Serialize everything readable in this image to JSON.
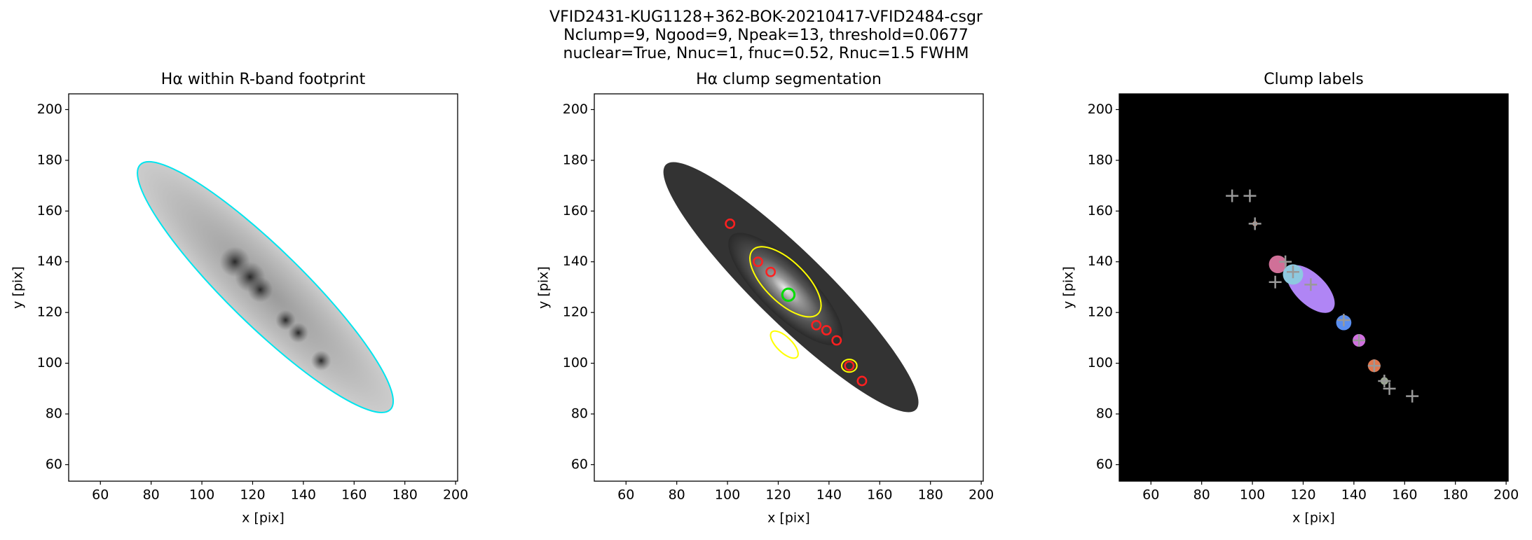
{
  "suptitle": [
    "VFID2431-KUG1128+362-BOK-20210417-VFID2484-csgr",
    "Nclump=9, Ngood=9, Npeak=13, threshold=0.0677",
    "nuclear=True, Nnuc=1, fnuc=0.52, Rnuc=1.5 FWHM"
  ],
  "chart_data": [
    {
      "type": "image",
      "title": "Hα within R-band footprint",
      "xlabel": "x [pix]",
      "ylabel": "y [pix]",
      "xlim": [
        47.5,
        200.8
      ],
      "ylim": [
        53.5,
        206.2
      ],
      "xticks": [
        60,
        80,
        100,
        120,
        140,
        160,
        180,
        200
      ],
      "yticks": [
        60,
        80,
        100,
        120,
        140,
        160,
        180,
        200
      ]
    },
    {
      "type": "image",
      "title": "Hα clump segmentation",
      "xlabel": "x [pix]",
      "ylabel": "y [pix]",
      "xlim": [
        47.5,
        200.8
      ],
      "ylim": [
        53.5,
        206.2
      ],
      "xticks": [
        60,
        80,
        100,
        120,
        140,
        160,
        180,
        200
      ],
      "yticks": [
        60,
        80,
        100,
        120,
        140,
        160,
        180,
        200
      ]
    },
    {
      "type": "image",
      "title": "Clump labels",
      "xlabel": "x [pix]",
      "ylabel": "y [pix]",
      "xlim": [
        47.5,
        200.8
      ],
      "ylim": [
        53.5,
        206.2
      ],
      "xticks": [
        60,
        80,
        100,
        120,
        140,
        160,
        180,
        200
      ],
      "yticks": [
        60,
        80,
        100,
        120,
        140,
        160,
        180,
        200
      ]
    }
  ]
}
